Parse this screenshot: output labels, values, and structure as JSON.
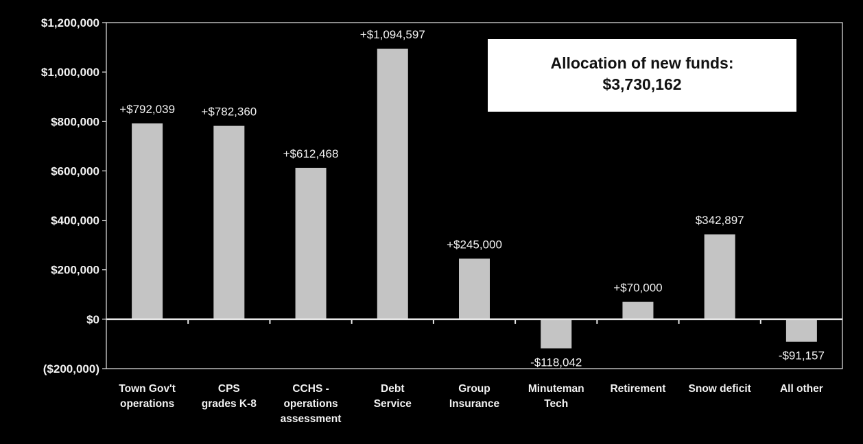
{
  "chart_data": {
    "type": "bar",
    "categories": [
      [
        "Town Gov't",
        "operations"
      ],
      [
        "CPS",
        "grades K-8"
      ],
      [
        "CCHS -",
        "operations",
        "assessment"
      ],
      [
        "Debt",
        "Service"
      ],
      [
        "Group",
        "Insurance"
      ],
      [
        "Minuteman",
        "Tech"
      ],
      [
        "Retirement"
      ],
      [
        "Snow deficit"
      ],
      [
        "All other"
      ]
    ],
    "values": [
      792039,
      782360,
      612468,
      1094597,
      245000,
      -118042,
      70000,
      342897,
      -91157
    ],
    "data_labels": [
      "+$792,039",
      "+$782,360",
      "+$612,468",
      "+$1,094,597",
      "+$245,000",
      "-$118,042",
      "+$70,000",
      "$342,897",
      "-$91,157"
    ],
    "ylim": [
      -200000,
      1200000
    ],
    "y_ticks": [
      1200000,
      1000000,
      800000,
      600000,
      400000,
      200000,
      0,
      -200000
    ],
    "y_tick_labels": [
      "$1,200,000",
      "$1,000,000",
      "$800,000",
      "$600,000",
      "$400,000",
      "$200,000",
      "$0",
      "($200,000)"
    ],
    "annotation": {
      "line1": "Allocation of new funds:",
      "line2": "$3,730,162"
    },
    "grid": false,
    "legend": "none",
    "colors": {
      "background": "#000000",
      "bar": "#c4c4c4",
      "axis": "#e8e8e8",
      "text": "#f2f2f2"
    }
  }
}
